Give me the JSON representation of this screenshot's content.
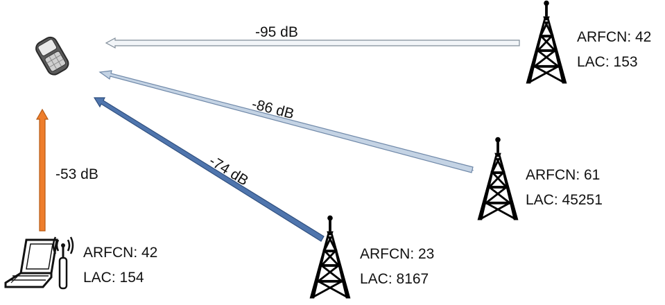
{
  "links": [
    {
      "id": "tower-top",
      "strength": "-95 dB",
      "color": "#f2f5f8",
      "stroke": "#7f8c99"
    },
    {
      "id": "tower-right",
      "strength": "-86 dB",
      "color": "#c4d3e4",
      "stroke": "#6f88a8"
    },
    {
      "id": "tower-bottom",
      "strength": "-74 dB",
      "color": "#4f75ad",
      "stroke": "#2f4f7f"
    },
    {
      "id": "fake-bts",
      "strength": "-53 dB",
      "color": "#ee7d2b",
      "stroke": "#b75a14"
    }
  ],
  "towers": [
    {
      "id": "tower-top",
      "arfcn": "ARFCN: 42",
      "lac": "LAC: 153"
    },
    {
      "id": "tower-right",
      "arfcn": "ARFCN: 61",
      "lac": "LAC: 45251"
    },
    {
      "id": "tower-bottom",
      "arfcn": "ARFCN: 23",
      "lac": "LAC: 8167"
    }
  ],
  "fake_bts": {
    "arfcn": "ARFCN: 42",
    "lac": "LAC: 154"
  },
  "icons": {
    "phone": "mobile-phone-icon",
    "tower": "cell-tower-icon",
    "laptop": "laptop-icon",
    "antenna": "radio-antenna-icon"
  }
}
